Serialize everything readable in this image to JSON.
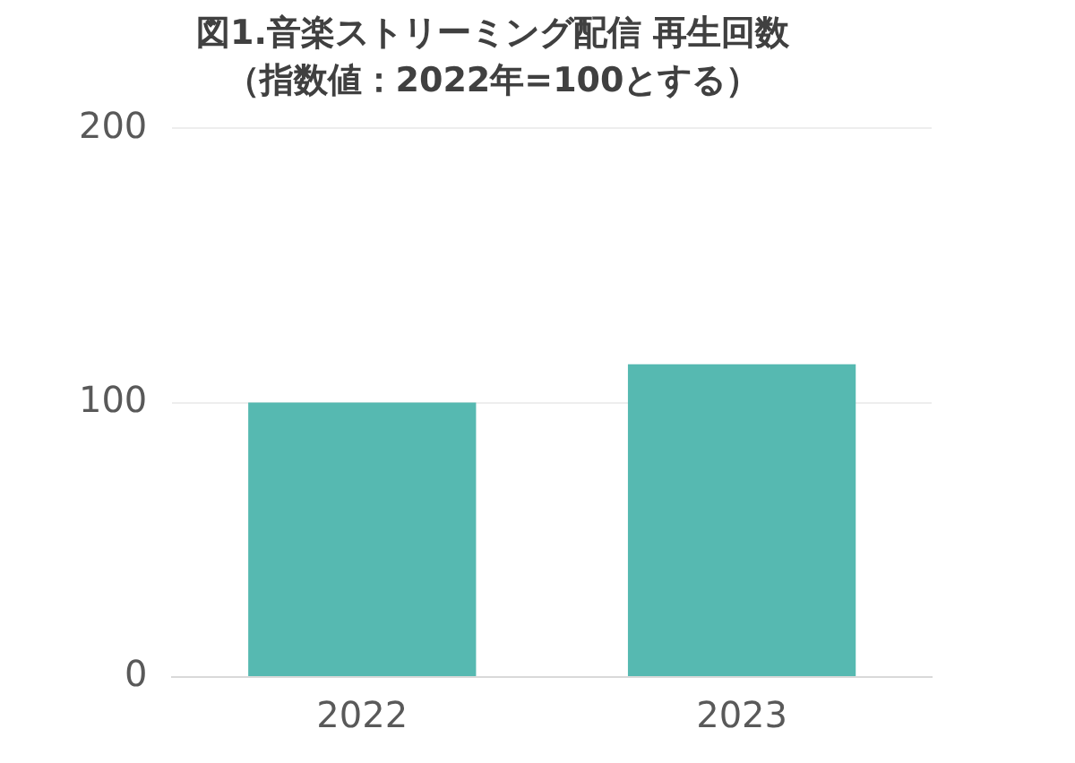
{
  "chart_data": {
    "type": "bar",
    "title": "図1.音楽ストリーミング配信 再生回数",
    "subtitle": "（指数値：2022年=100とする）",
    "categories": [
      "2022",
      "2023"
    ],
    "values": [
      100,
      114
    ],
    "color": "#56b9b1",
    "ylim": [
      0,
      200
    ],
    "yticks": [
      0,
      100,
      200
    ],
    "grid": "y",
    "legend": false
  }
}
